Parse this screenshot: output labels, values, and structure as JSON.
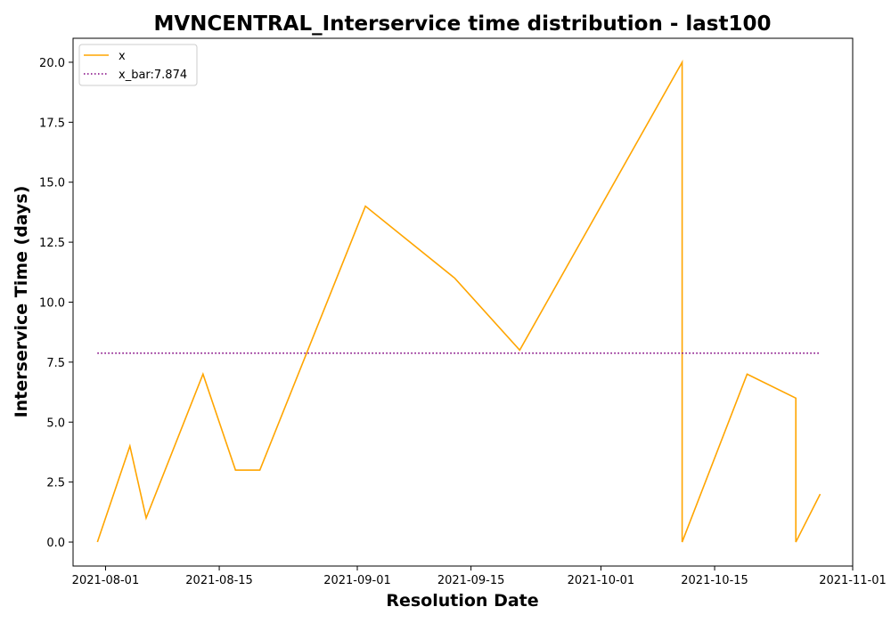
{
  "chart_data": {
    "type": "line",
    "title": "MVNCENTRAL_Interservice time distribution - last100",
    "xlabel": "Resolution Date",
    "ylabel": "Interservice Time (days)",
    "xlim": [
      "2021-07-28",
      "2021-11-01"
    ],
    "ylim": [
      -1.0,
      21.0
    ],
    "x_ticks": [
      "2021-08-01",
      "2021-08-15",
      "2021-09-01",
      "2021-09-15",
      "2021-10-01",
      "2021-10-15",
      "2021-11-01"
    ],
    "y_ticks": [
      0.0,
      2.5,
      5.0,
      7.5,
      10.0,
      12.5,
      15.0,
      17.5,
      20.0
    ],
    "y_tick_labels": [
      "0.0",
      "2.5",
      "5.0",
      "7.5",
      "10.0",
      "12.5",
      "15.0",
      "17.5",
      "20.0"
    ],
    "series": [
      {
        "name": "x",
        "color": "#FFA500",
        "style": "solid",
        "points": [
          [
            "2021-07-31",
            0
          ],
          [
            "2021-08-04",
            4
          ],
          [
            "2021-08-06",
            1
          ],
          [
            "2021-08-13",
            7
          ],
          [
            "2021-08-17",
            3
          ],
          [
            "2021-08-20",
            3
          ],
          [
            "2021-09-02",
            14
          ],
          [
            "2021-09-13",
            11
          ],
          [
            "2021-09-21",
            8
          ],
          [
            "2021-10-11",
            20
          ],
          [
            "2021-10-11",
            0
          ],
          [
            "2021-10-19",
            7
          ],
          [
            "2021-10-25",
            6
          ],
          [
            "2021-10-25",
            0
          ],
          [
            "2021-10-28",
            2
          ]
        ]
      },
      {
        "name": "x_bar:7.874",
        "color": "#800080",
        "style": "dotted",
        "points": [
          [
            "2021-07-31",
            7.874
          ],
          [
            "2021-10-28",
            7.874
          ]
        ]
      }
    ],
    "legend_position": "top-left",
    "grid": false
  }
}
